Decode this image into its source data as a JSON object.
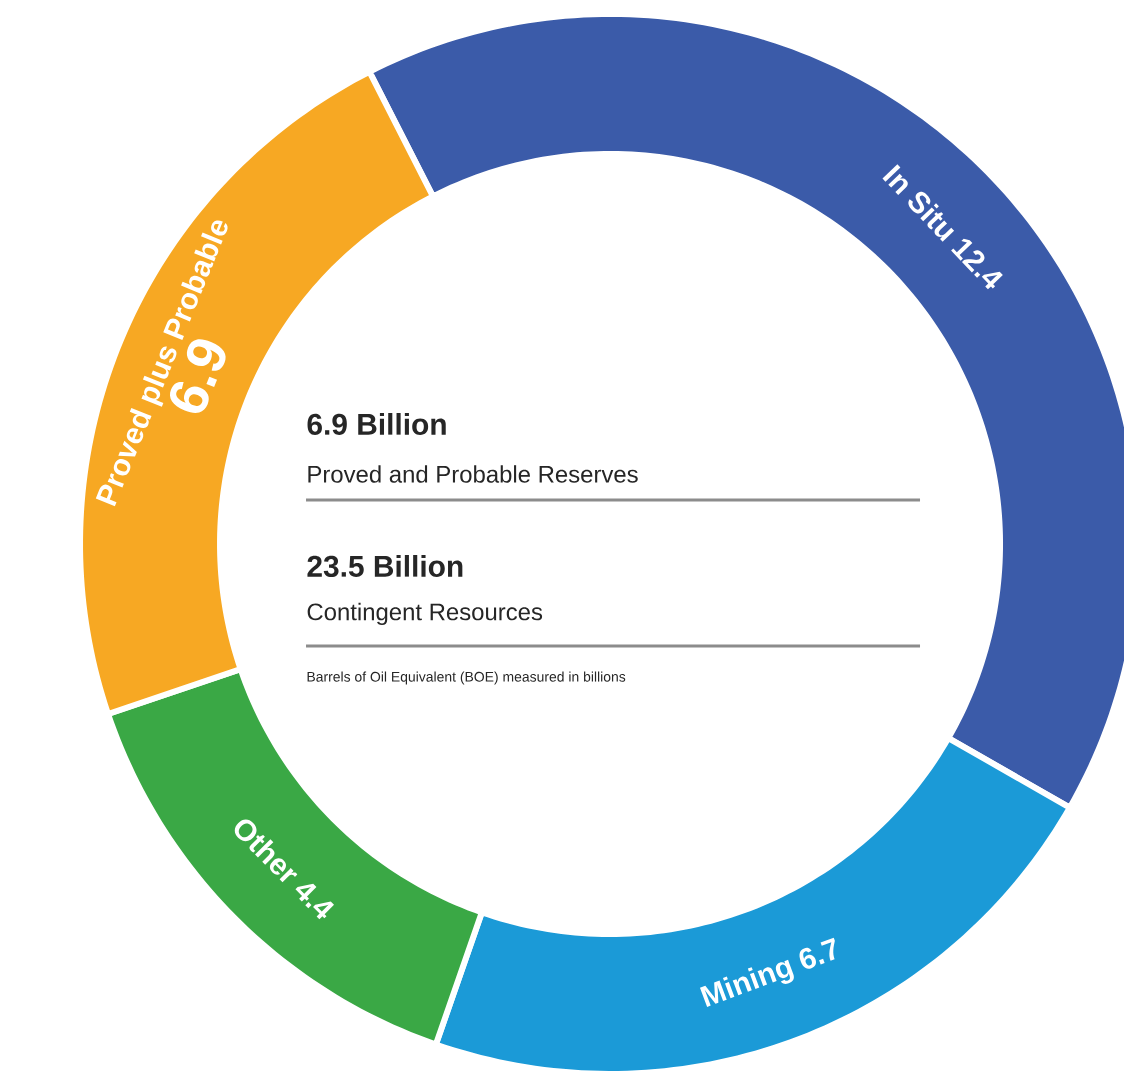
{
  "chart_data": {
    "type": "donut",
    "categories": [
      "In Situ",
      "Mining",
      "Other",
      "Proved plus Probable"
    ],
    "values": [
      12.4,
      6.7,
      4.4,
      6.9
    ],
    "colors": [
      "#3b5ba9",
      "#1b9ad7",
      "#3aa845",
      "#f7a823"
    ],
    "data_labels": true,
    "annotations": [
      "6.9 Billion",
      "Proved and Probable Reserves",
      "23.5 Billion",
      "Contingent Resources",
      "Barrels of Oil Equivalent (BOE) measured in billions"
    ]
  }
}
